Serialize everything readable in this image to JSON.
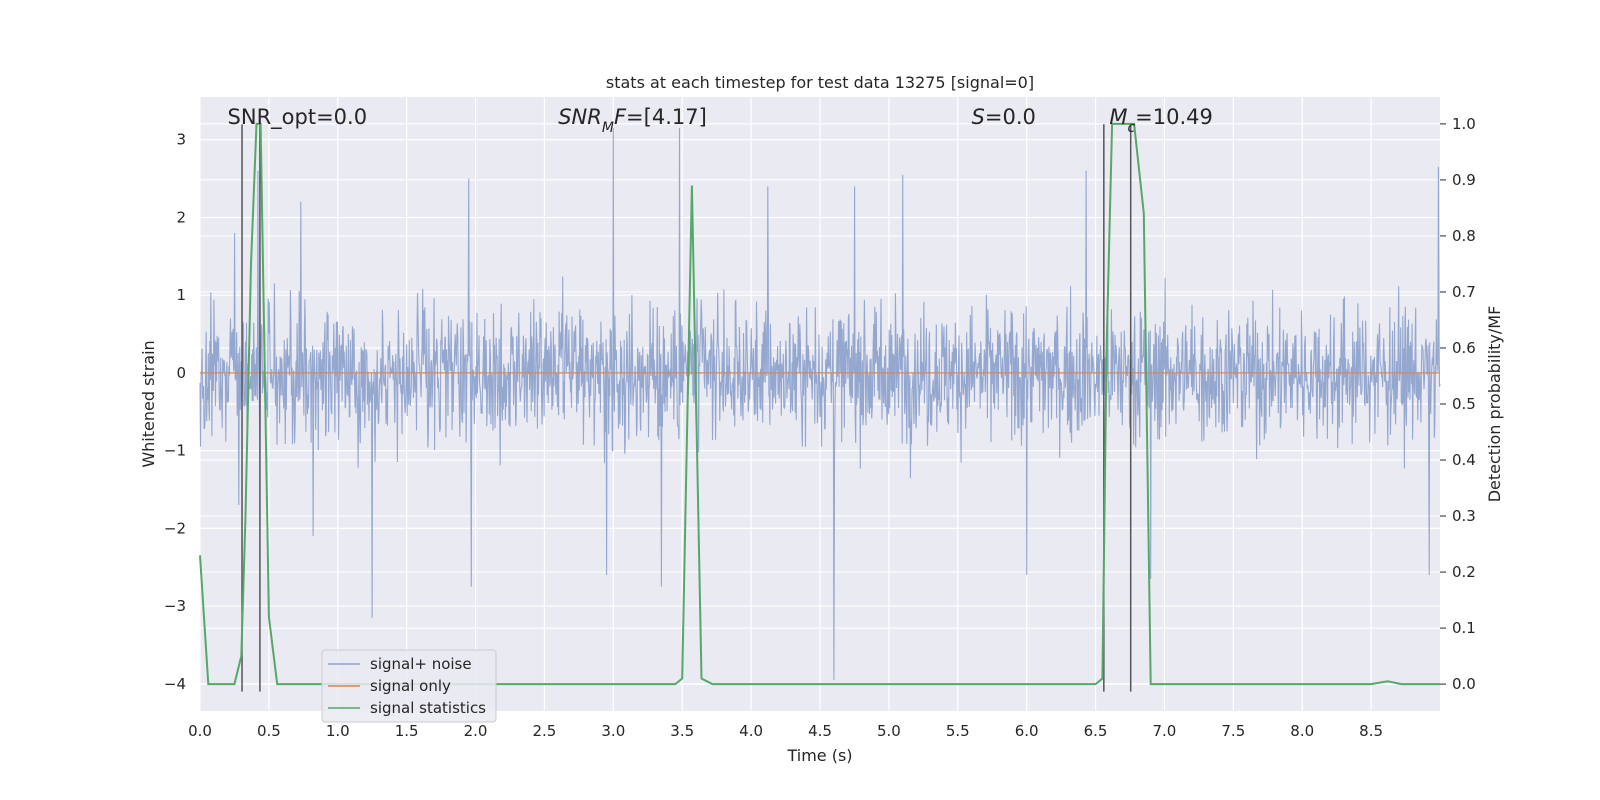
{
  "chart_data": {
    "type": "line",
    "title": "stats at each timestep for test data 13275 [signal=0]",
    "xlabel": "Time (s)",
    "ylabel": "Whitened strain",
    "y2label": "Detection probability/MF",
    "xlim": [
      0,
      9.0
    ],
    "ylim": [
      -4.35,
      3.55
    ],
    "y2lim": [
      -0.048,
      1.048
    ],
    "grid": true,
    "legend_position": "lower-left",
    "x_ticks": [
      "0.0",
      "0.5",
      "1.0",
      "1.5",
      "2.0",
      "2.5",
      "3.0",
      "3.5",
      "4.0",
      "4.5",
      "5.0",
      "5.5",
      "6.0",
      "6.5",
      "7.0",
      "7.5",
      "8.0",
      "8.5"
    ],
    "y_ticks": [
      "−4",
      "−3",
      "−2",
      "−1",
      "0",
      "1",
      "2",
      "3"
    ],
    "y2_ticks": [
      "0.0",
      "0.1",
      "0.2",
      "0.3",
      "0.4",
      "0.5",
      "0.6",
      "0.7",
      "0.8",
      "0.9",
      "1.0"
    ],
    "annotations": [
      {
        "name": "snr-opt",
        "text": "SNR_opt=0.0",
        "x": 0.2
      },
      {
        "name": "snr-mf",
        "text": "=[4.17]",
        "math": "SNR",
        "sub": "M",
        "mathtail": "F",
        "x": 2.6
      },
      {
        "name": "s-stat",
        "text": "=0.0",
        "math": "S",
        "x": 5.6
      },
      {
        "name": "mc",
        "text": "=10.49",
        "math": "M",
        "sub": "c",
        "x": 6.6
      }
    ],
    "series": [
      {
        "name": "signal+ noise",
        "color": "#8fa3cc",
        "kind": "noise-trace",
        "typical_range": [
          -1.2,
          1.2
        ],
        "peaks": [
          {
            "x": 0.25,
            "y": 1.8
          },
          {
            "x": 0.28,
            "y": -1.7
          },
          {
            "x": 0.42,
            "y": 2.6
          },
          {
            "x": 0.73,
            "y": 2.2
          },
          {
            "x": 0.82,
            "y": -2.1
          },
          {
            "x": 1.25,
            "y": -3.15
          },
          {
            "x": 1.95,
            "y": 2.5
          },
          {
            "x": 1.97,
            "y": -2.75
          },
          {
            "x": 2.95,
            "y": -2.6
          },
          {
            "x": 3.0,
            "y": 3.15
          },
          {
            "x": 3.35,
            "y": -2.75
          },
          {
            "x": 3.48,
            "y": 3.15
          },
          {
            "x": 4.12,
            "y": 2.4
          },
          {
            "x": 4.6,
            "y": -3.95
          },
          {
            "x": 4.75,
            "y": 2.4
          },
          {
            "x": 5.1,
            "y": 2.55
          },
          {
            "x": 6.0,
            "y": -2.6
          },
          {
            "x": 6.43,
            "y": 2.6
          },
          {
            "x": 6.9,
            "y": -2.65
          },
          {
            "x": 8.92,
            "y": -2.6
          },
          {
            "x": 8.99,
            "y": 2.65
          }
        ]
      },
      {
        "name": "signal only",
        "color": "#dd8452",
        "x": [
          0,
          9.0
        ],
        "y": [
          0,
          0
        ]
      },
      {
        "name": "signal statistics",
        "color": "#55a868",
        "axis": "right",
        "x": [
          0.0,
          0.06,
          0.25,
          0.3,
          0.33,
          0.37,
          0.41,
          0.44,
          0.5,
          0.56,
          1.0,
          2.0,
          3.0,
          3.45,
          3.5,
          3.57,
          3.64,
          3.72,
          4.0,
          5.0,
          6.0,
          6.5,
          6.55,
          6.58,
          6.62,
          6.7,
          6.78,
          6.85,
          6.9,
          7.0,
          8.0,
          8.5,
          8.62,
          8.72,
          8.82,
          9.0
        ],
        "y": [
          0.23,
          0.0,
          0.0,
          0.05,
          0.3,
          0.75,
          1.0,
          1.0,
          0.12,
          0.0,
          0.0,
          0.0,
          0.0,
          0.0,
          0.01,
          0.89,
          0.01,
          0.0,
          0.0,
          0.0,
          0.0,
          0.0,
          0.01,
          0.6,
          1.0,
          1.0,
          1.0,
          0.84,
          0.0,
          0.0,
          0.0,
          0.0,
          0.005,
          0.0,
          0.0,
          0.0
        ]
      }
    ],
    "vertical_lines": {
      "color": "#555555",
      "x": [
        0.305,
        0.435,
        6.56,
        6.755
      ]
    }
  }
}
